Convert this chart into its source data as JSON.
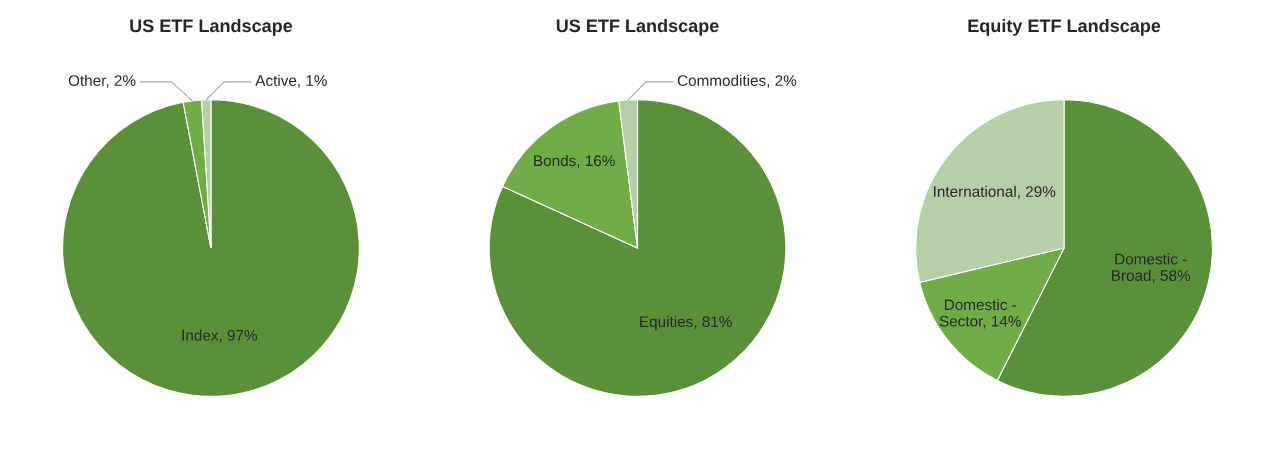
{
  "chart_data": [
    {
      "type": "pie",
      "title": "US ETF Landscape",
      "categories": [
        "Index",
        "Other",
        "Active"
      ],
      "values": [
        97,
        2,
        1
      ],
      "value_labels": [
        "97%",
        "2%",
        "1%"
      ],
      "colors": [
        "#5b8f3a",
        "#70ad47",
        "#b5cfa7"
      ]
    },
    {
      "type": "pie",
      "title": "US ETF Landscape",
      "categories": [
        "Equities",
        "Bonds",
        "Commodities"
      ],
      "values": [
        81,
        16,
        2
      ],
      "value_labels": [
        "81%",
        "16%",
        "2%"
      ],
      "colors": [
        "#5b8f3a",
        "#70ad47",
        "#b5cfa7"
      ]
    },
    {
      "type": "pie",
      "title": "Equity ETF Landscape",
      "categories": [
        "Domestic - Broad",
        "Domestic - Sector",
        "International"
      ],
      "values": [
        58,
        14,
        29
      ],
      "value_labels": [
        "58%",
        "14%",
        "29%"
      ],
      "colors": [
        "#5b8f3a",
        "#70ad47",
        "#b5cfa7"
      ]
    }
  ]
}
